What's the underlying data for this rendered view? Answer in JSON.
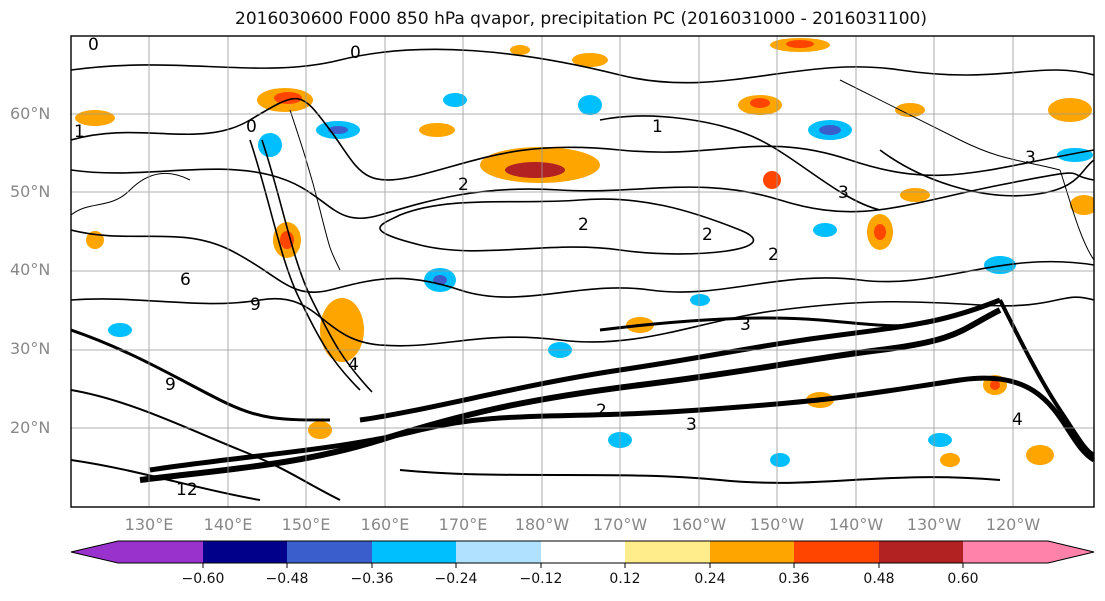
{
  "title": "2016030600 F000 850 hPa qvapor, precipitation PC (2016031000 - 2016031100)",
  "lat_labels": [
    "60°N",
    "50°N",
    "40°N",
    "30°N",
    "20°N"
  ],
  "lon_labels": [
    "130°E",
    "140°E",
    "150°E",
    "160°E",
    "170°E",
    "180°W",
    "170°W",
    "160°W",
    "150°W",
    "140°W",
    "130°W",
    "120°W"
  ],
  "colorbar": {
    "tick_labels": [
      "−0.60",
      "−0.48",
      "−0.36",
      "−0.24",
      "−0.12",
      "0.12",
      "0.24",
      "0.36",
      "0.48",
      "0.60"
    ],
    "colors": [
      "#9932cc",
      "#00008b",
      "#3a5fcd",
      "#00bfff",
      "#b0e2ff",
      "#ffffff",
      "#ffec8b",
      "#ffa500",
      "#ff4500",
      "#b22222",
      "#ff82ab"
    ],
    "extend": "both"
  },
  "contour_labels": [
    "0",
    "0",
    "0",
    "1",
    "1",
    "2",
    "2",
    "2",
    "2",
    "2",
    "3",
    "3",
    "3",
    "3",
    "4",
    "4",
    "6",
    "9",
    "9",
    "12"
  ]
}
